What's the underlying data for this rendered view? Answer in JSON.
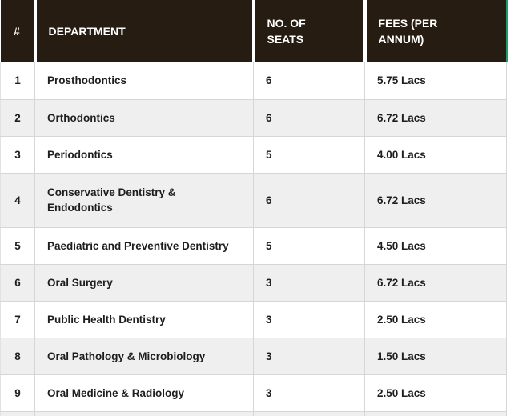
{
  "table": {
    "columns": [
      {
        "key": "num",
        "label": "#"
      },
      {
        "key": "department",
        "label": "DEPARTMENT"
      },
      {
        "key": "seats",
        "label": "NO. OF\nSEATS"
      },
      {
        "key": "fees",
        "label": "FEES (PER\nANNUM)"
      }
    ],
    "rows": [
      {
        "num": "1",
        "department": "Prosthodontics",
        "seats": "6",
        "fees": "5.75 Lacs"
      },
      {
        "num": "2",
        "department": "Orthodontics",
        "seats": "6",
        "fees": "6.72 Lacs"
      },
      {
        "num": "3",
        "department": "Periodontics",
        "seats": "5",
        "fees": "4.00 Lacs"
      },
      {
        "num": "4",
        "department": "Conservative Dentistry &\nEndodontics",
        "seats": "6",
        "fees": "6.72 Lacs"
      },
      {
        "num": "5",
        "department": "Paediatric and Preventive Dentistry",
        "seats": "5",
        "fees": "4.50 Lacs"
      },
      {
        "num": "6",
        "department": "Oral Surgery",
        "seats": "3",
        "fees": "6.72 Lacs"
      },
      {
        "num": "7",
        "department": "Public Health Dentistry",
        "seats": "3",
        "fees": "2.50 Lacs"
      },
      {
        "num": "8",
        "department": "Oral Pathology & Microbiology",
        "seats": "3",
        "fees": "1.50 Lacs"
      },
      {
        "num": "9",
        "department": "Oral Medicine & Radiology",
        "seats": "3",
        "fees": "2.50 Lacs"
      }
    ]
  },
  "colors": {
    "header-bg": "#261c12",
    "header-text": "#ffffff",
    "body-text": "#1e1e1e",
    "stripe": "#efefef",
    "border": "#d6d6d6",
    "accent-strip": "#1f9d62",
    "page-bg": "#ffffff"
  }
}
